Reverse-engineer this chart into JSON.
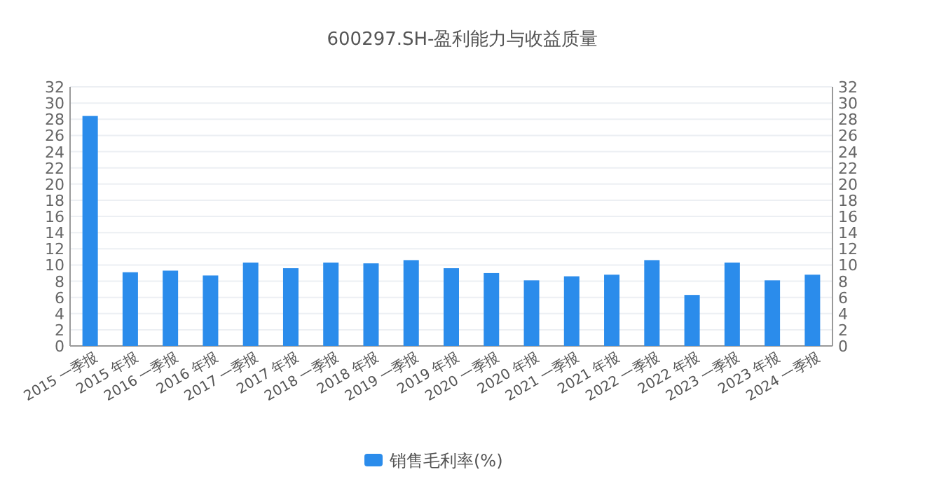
{
  "chart_data": {
    "type": "bar",
    "title": "600297.SH-盈利能力与收益质量",
    "categories": [
      "2015 一季报",
      "2015 年报",
      "2016 一季报",
      "2016 年报",
      "2017 一季报",
      "2017 年报",
      "2018 一季报",
      "2018 年报",
      "2019 一季报",
      "2019 年报",
      "2020 一季报",
      "2020 年报",
      "2021 一季报",
      "2021 年报",
      "2022 一季报",
      "2022 年报",
      "2023 一季报",
      "2023 年报",
      "2024 一季报"
    ],
    "series": [
      {
        "name": "销售毛利率(%)",
        "color": "#2b8ceb",
        "values": [
          28.4,
          9.1,
          9.3,
          8.7,
          10.3,
          9.6,
          10.3,
          10.2,
          10.6,
          9.6,
          9.0,
          8.1,
          8.6,
          8.8,
          10.6,
          6.3,
          10.3,
          8.1,
          8.8
        ]
      }
    ],
    "ylim": [
      0,
      32
    ],
    "yticks": [
      0,
      2,
      4,
      6,
      8,
      10,
      12,
      14,
      16,
      18,
      20,
      22,
      24,
      26,
      28,
      30,
      32
    ],
    "y2lim": [
      0,
      32
    ],
    "y2ticks": [
      0,
      2,
      4,
      6,
      8,
      10,
      12,
      14,
      16,
      18,
      20,
      22,
      24,
      26,
      28,
      30,
      32
    ],
    "grid": "y",
    "legend": "bottom"
  }
}
